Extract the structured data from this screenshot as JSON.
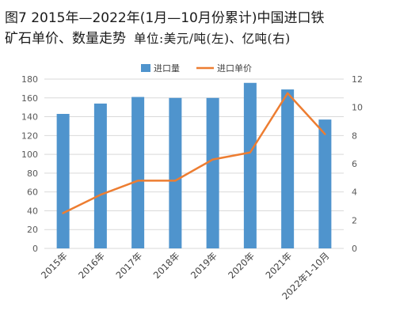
{
  "title": {
    "line1": "图7 2015年—2022年(1月—10月份累计)中国进口铁",
    "line2": "矿石单价、数量走势",
    "unit": "单位:美元/吨(左)、亿吨(右)"
  },
  "chart_data": {
    "type": "bar",
    "categories": [
      "2015年",
      "2016年",
      "2017年",
      "2018年",
      "2019年",
      "2020年",
      "2021年",
      "2022年1-10月"
    ],
    "series": [
      {
        "name": "进口量",
        "type": "bar",
        "axis": "left",
        "color": "#4f94cd",
        "values": [
          143,
          154,
          161,
          160,
          160,
          176,
          169,
          137
        ]
      },
      {
        "name": "进口单价",
        "type": "line",
        "axis": "right",
        "color": "#ed7d31",
        "values": [
          2.5,
          3.8,
          4.8,
          4.8,
          6.3,
          6.8,
          11.0,
          8.1
        ]
      }
    ],
    "y_left": {
      "min": 0,
      "max": 180,
      "step": 20,
      "ticks": [
        "0",
        "20",
        "40",
        "60",
        "80",
        "100",
        "120",
        "140",
        "160",
        "180"
      ]
    },
    "y_right": {
      "min": 0,
      "max": 12,
      "step": 2,
      "ticks": [
        "0",
        "2",
        "4",
        "6",
        "8",
        "10",
        "12"
      ]
    },
    "grid": true,
    "legend_position": "top"
  }
}
